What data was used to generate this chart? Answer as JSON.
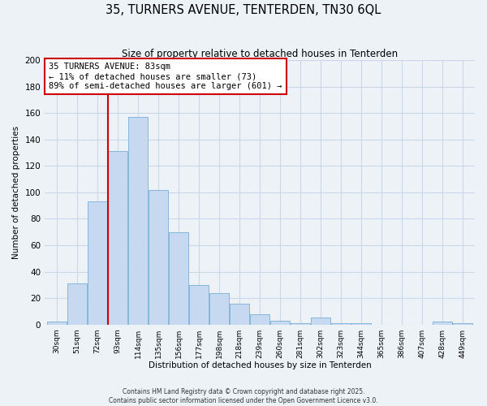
{
  "title": "35, TURNERS AVENUE, TENTERDEN, TN30 6QL",
  "subtitle": "Size of property relative to detached houses in Tenterden",
  "xlabel": "Distribution of detached houses by size in Tenterden",
  "ylabel": "Number of detached properties",
  "bar_labels": [
    "30sqm",
    "51sqm",
    "72sqm",
    "93sqm",
    "114sqm",
    "135sqm",
    "156sqm",
    "177sqm",
    "198sqm",
    "218sqm",
    "239sqm",
    "260sqm",
    "281sqm",
    "302sqm",
    "323sqm",
    "344sqm",
    "365sqm",
    "386sqm",
    "407sqm",
    "428sqm",
    "449sqm"
  ],
  "bar_values": [
    2,
    31,
    93,
    131,
    157,
    102,
    70,
    30,
    24,
    16,
    8,
    3,
    1,
    5,
    1,
    1,
    0,
    0,
    0,
    2,
    1
  ],
  "bar_color": "#c6d9f1",
  "bar_edge_color": "#7aafd4",
  "vline_color": "#cc0000",
  "annotation_title": "35 TURNERS AVENUE: 83sqm",
  "annotation_line1": "← 11% of detached houses are smaller (73)",
  "annotation_line2": "89% of semi-detached houses are larger (601) →",
  "annotation_box_color": "#ffffff",
  "annotation_box_edge": "#cc0000",
  "ylim": [
    0,
    200
  ],
  "yticks": [
    0,
    20,
    40,
    60,
    80,
    100,
    120,
    140,
    160,
    180,
    200
  ],
  "grid_color": "#c8d8e8",
  "bg_color": "#edf2f7",
  "footer1": "Contains HM Land Registry data © Crown copyright and database right 2025.",
  "footer2": "Contains public sector information licensed under the Open Government Licence v3.0."
}
